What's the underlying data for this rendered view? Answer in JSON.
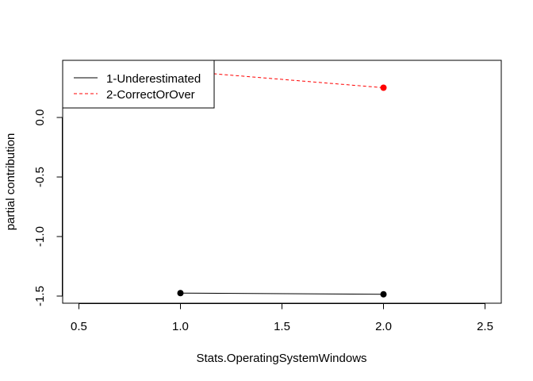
{
  "chart_data": {
    "type": "line",
    "title": "",
    "xlabel": "Stats.OperatingSystemWindows",
    "ylabel": "partial contribution",
    "xlim": [
      0.42,
      2.58
    ],
    "ylim": [
      -1.56,
      0.48
    ],
    "x_ticks": [
      0.5,
      1.0,
      1.5,
      2.0,
      2.5
    ],
    "x_tick_labels": [
      "0.5",
      "1.0",
      "1.5",
      "2.0",
      "2.5"
    ],
    "y_ticks": [
      -1.5,
      -1.0,
      -0.5,
      0.0
    ],
    "y_tick_labels": [
      "-1.5",
      "-1.0",
      "-0.5",
      "0.0"
    ],
    "grid": false,
    "legend_position": "top-left",
    "series": [
      {
        "name": "1-Underestimated",
        "x": [
          1,
          2
        ],
        "y": [
          -1.475,
          -1.485
        ],
        "color": "#000000",
        "line_style": "solid"
      },
      {
        "name": "2-CorrectOrOver",
        "x": [
          1,
          2
        ],
        "y": [
          0.39,
          0.25
        ],
        "color": "#ff0000",
        "line_style": "dashed"
      }
    ]
  }
}
